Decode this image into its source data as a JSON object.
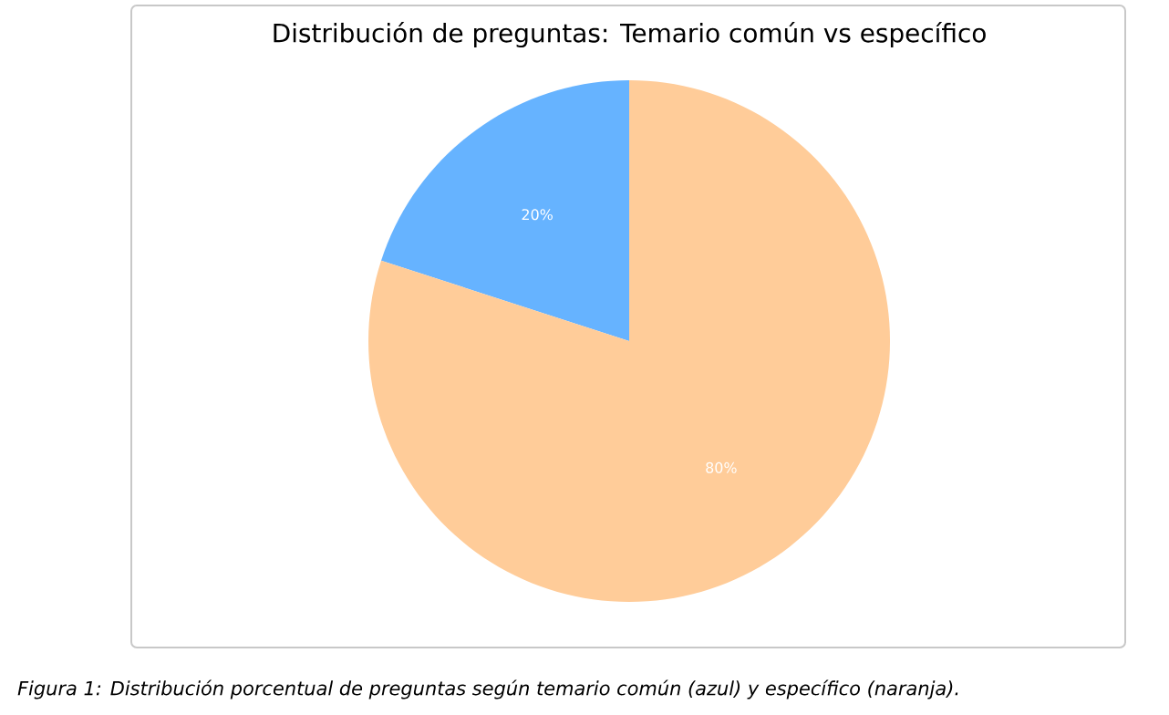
{
  "chart_data": {
    "type": "pie",
    "title": "Distribución de preguntas: Temario común vs específico",
    "categories": [
      null,
      null
    ],
    "values": [
      20,
      80
    ],
    "colors": [
      "#66b3ff",
      "#ffcc99"
    ],
    "value_labels": [
      "20%",
      "80%"
    ],
    "annotations": [
      "*Figura 1: Distribución porcentual de preguntas según temario común (azul) y específico (naranja).*"
    ]
  }
}
